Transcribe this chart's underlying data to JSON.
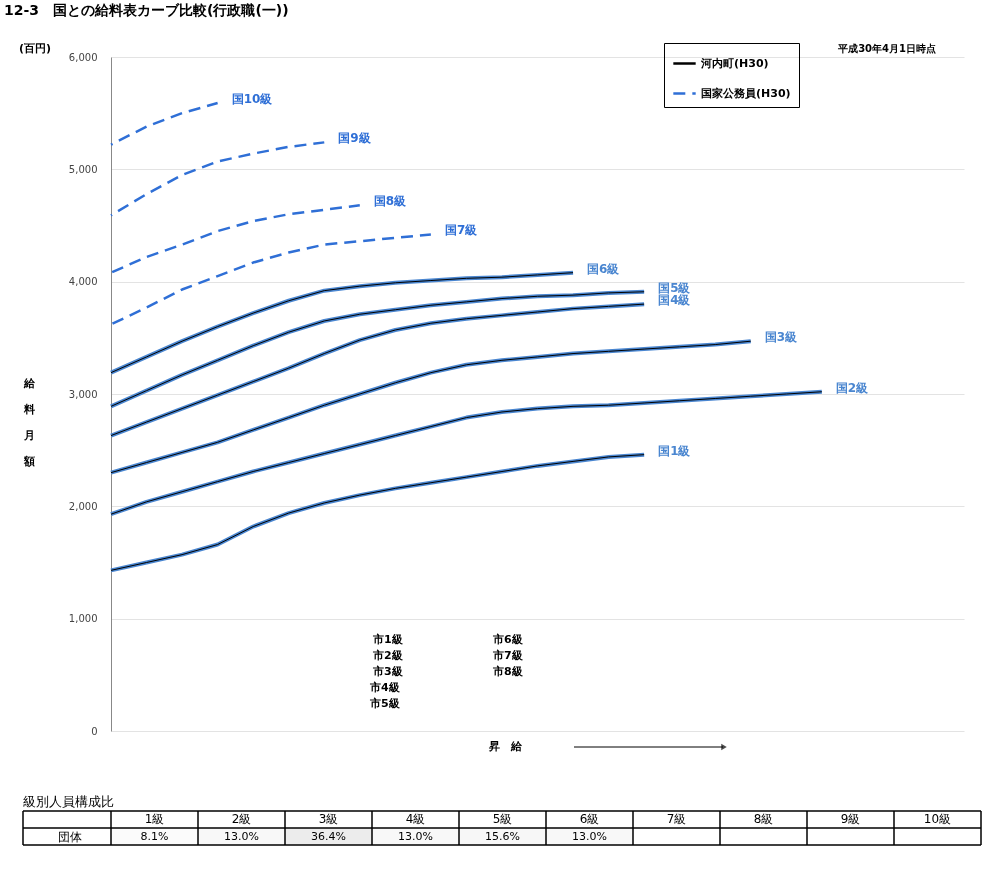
{
  "chart_data": [
    {
      "type": "line",
      "title": "12-3　国との給料表カーブ比較(行政職(一))",
      "ylabel": "給料月額",
      "xlabel": "昇　給",
      "legend": "top right",
      "grid": "y",
      "tick_labels": "y",
      "annotations": [
        "(百円)",
        "平成30年4月1日時点",
        "国家公務員(H30)",
        "市1級",
        "市2級",
        "市3級",
        "市4級",
        "市5級",
        "市6級",
        "市7級",
        "市8級"
      ],
      "categories": [
        null,
        null,
        null,
        null,
        null,
        null,
        null,
        null,
        null,
        null,
        null,
        null,
        null,
        null,
        null,
        null,
        null,
        null,
        null,
        null,
        null,
        null,
        null,
        null,
        null
      ],
      "ylim": [
        0,
        6000
      ],
      "yticks": [
        0,
        {
          "value": 1000,
          "label": "1,000"
        },
        {
          "value": 2000,
          "label": "2,000"
        },
        {
          "value": 3000,
          "label": "3,000"
        },
        {
          "value": 4000,
          "label": "4,000"
        },
        {
          "value": 5000,
          "label": "5,000"
        },
        {
          "value": 6000,
          "label": "6,000"
        }
      ],
      "series": [
        {
          "name": "国1級",
          "color": "#4a86d0",
          "line_style": "solid",
          "values": [
            1430,
            1500,
            1570,
            1660,
            1820,
            1940,
            2030,
            2100,
            2160,
            2210,
            2260,
            2310,
            2360,
            2400,
            2440,
            2460,
            null,
            null,
            null,
            null,
            null,
            null,
            null,
            null,
            null
          ]
        },
        {
          "name": "国2級",
          "color": "#4a86d0",
          "line_style": "solid",
          "values": [
            1930,
            2040,
            2130,
            2220,
            2310,
            2390,
            2470,
            2550,
            2630,
            2710,
            2790,
            2840,
            2870,
            2890,
            2900,
            2920,
            2940,
            2960,
            2980,
            3000,
            3020,
            null,
            null,
            null,
            null
          ]
        },
        {
          "name": "国3級",
          "color": "#4a86d0",
          "line_style": "solid",
          "values": [
            2300,
            2390,
            2480,
            2570,
            2680,
            2790,
            2900,
            3000,
            3100,
            3190,
            3260,
            3300,
            3330,
            3360,
            3380,
            3400,
            3420,
            3440,
            3470,
            null,
            null,
            null,
            null,
            null,
            null
          ]
        },
        {
          "name": "国4級",
          "color": "#4a86d0",
          "line_style": "solid",
          "values": [
            2630,
            2750,
            2870,
            2990,
            3110,
            3230,
            3360,
            3480,
            3570,
            3630,
            3670,
            3700,
            3730,
            3760,
            3780,
            3800,
            null,
            null,
            null,
            null,
            null,
            null,
            null,
            null,
            null
          ]
        },
        {
          "name": "国5級",
          "color": "#4a86d0",
          "line_style": "solid",
          "values": [
            2890,
            3030,
            3170,
            3300,
            3430,
            3550,
            3650,
            3710,
            3750,
            3790,
            3820,
            3850,
            3870,
            3880,
            3900,
            3910,
            null,
            null,
            null,
            null,
            null,
            null,
            null,
            null,
            null
          ]
        },
        {
          "name": "国6級",
          "color": "#4a86d0",
          "line_style": "solid",
          "values": [
            3190,
            3330,
            3470,
            3600,
            3720,
            3830,
            3920,
            3960,
            3990,
            4010,
            4030,
            4040,
            4060,
            4080,
            null,
            null,
            null,
            null,
            null,
            null,
            null,
            null,
            null,
            null,
            null
          ]
        },
        {
          "name": "国7級",
          "color": "#2f6fd6",
          "line_style": "dashed",
          "values": [
            3620,
            3770,
            3930,
            4050,
            4170,
            4260,
            4330,
            4360,
            4390,
            4420,
            null,
            null,
            null,
            null,
            null,
            null,
            null,
            null,
            null,
            null,
            null,
            null,
            null,
            null,
            null
          ]
        },
        {
          "name": "国8級",
          "color": "#2f6fd6",
          "line_style": "dashed",
          "values": [
            4080,
            4220,
            4330,
            4450,
            4540,
            4600,
            4640,
            4680,
            null,
            null,
            null,
            null,
            null,
            null,
            null,
            null,
            null,
            null,
            null,
            null,
            null,
            null,
            null,
            null,
            null
          ]
        },
        {
          "name": "国9級",
          "color": "#2f6fd6",
          "line_style": "dashed",
          "values": [
            4590,
            4780,
            4950,
            5070,
            5140,
            5200,
            5240,
            null,
            null,
            null,
            null,
            null,
            null,
            null,
            null,
            null,
            null,
            null,
            null,
            null,
            null,
            null,
            null,
            null,
            null
          ]
        },
        {
          "name": "国10級",
          "color": "#2f6fd6",
          "line_style": "dashed",
          "values": [
            5220,
            5380,
            5500,
            5590,
            null,
            null,
            null,
            null,
            null,
            null,
            null,
            null,
            null,
            null,
            null,
            null,
            null,
            null,
            null,
            null,
            null,
            null,
            null,
            null,
            null
          ]
        },
        {
          "name": "河内町(H30)",
          "color": "#000000",
          "line_style": "solid",
          "values": [
            1430,
            1500,
            1570,
            1660,
            1820,
            1940,
            2030,
            2100,
            2160,
            2210,
            2260,
            2310,
            2360,
            2400,
            2440,
            2460,
            null,
            null,
            null,
            null,
            null,
            null,
            null,
            null,
            null
          ]
        },
        {
          "color": "#000000",
          "line_style": "solid",
          "values": [
            1930,
            2040,
            2130,
            2220,
            2310,
            2390,
            2470,
            2550,
            2630,
            2710,
            2790,
            2840,
            2870,
            2890,
            2900,
            2920,
            2940,
            2960,
            2980,
            3000,
            3020,
            null,
            null,
            null,
            null
          ]
        },
        {
          "color": "#000000",
          "line_style": "solid",
          "values": [
            2300,
            2390,
            2480,
            2570,
            2680,
            2790,
            2900,
            3000,
            3100,
            3190,
            3260,
            3300,
            3330,
            3360,
            3380,
            3400,
            3420,
            3440,
            3470,
            null,
            null,
            null,
            null,
            null,
            null
          ]
        },
        {
          "color": "#000000",
          "line_style": "solid",
          "values": [
            2630,
            2750,
            2870,
            2990,
            3110,
            3230,
            3360,
            3480,
            3570,
            3630,
            3670,
            3700,
            3730,
            3760,
            3780,
            3800,
            null,
            null,
            null,
            null,
            null,
            null,
            null,
            null,
            null
          ]
        },
        {
          "color": "#000000",
          "line_style": "solid",
          "values": [
            2890,
            3030,
            3170,
            3300,
            3430,
            3550,
            3650,
            3710,
            3750,
            3790,
            3820,
            3850,
            3870,
            3880,
            3900,
            3910,
            null,
            null,
            null,
            null,
            null,
            null,
            null,
            null,
            null
          ]
        },
        {
          "color": "#000000",
          "line_style": "solid",
          "values": [
            3190,
            3330,
            3470,
            3600,
            3720,
            3830,
            3920,
            3960,
            3990,
            4010,
            4030,
            4040,
            4060,
            4080,
            null,
            null,
            null,
            null,
            null,
            null,
            null,
            null,
            null,
            null,
            null
          ]
        }
      ]
    },
    {
      "type": "heatmap",
      "title": "級別人員構成比",
      "categories": [
        "1級",
        "2級",
        "3級",
        "4級",
        "5級",
        "6級",
        "7級",
        "8級",
        "9級",
        "10級"
      ],
      "y_categories": [
        "団体"
      ],
      "cells": [
        [
          8.1,
          13.0,
          36.4,
          13.0,
          15.6,
          13.0,
          null,
          null,
          null,
          null
        ]
      ],
      "cell_labels": [
        [
          "8.1%",
          "13.0%",
          "36.4%",
          "13.0%",
          "15.6%",
          "13.0%",
          null,
          null,
          null,
          null
        ]
      ]
    }
  ]
}
